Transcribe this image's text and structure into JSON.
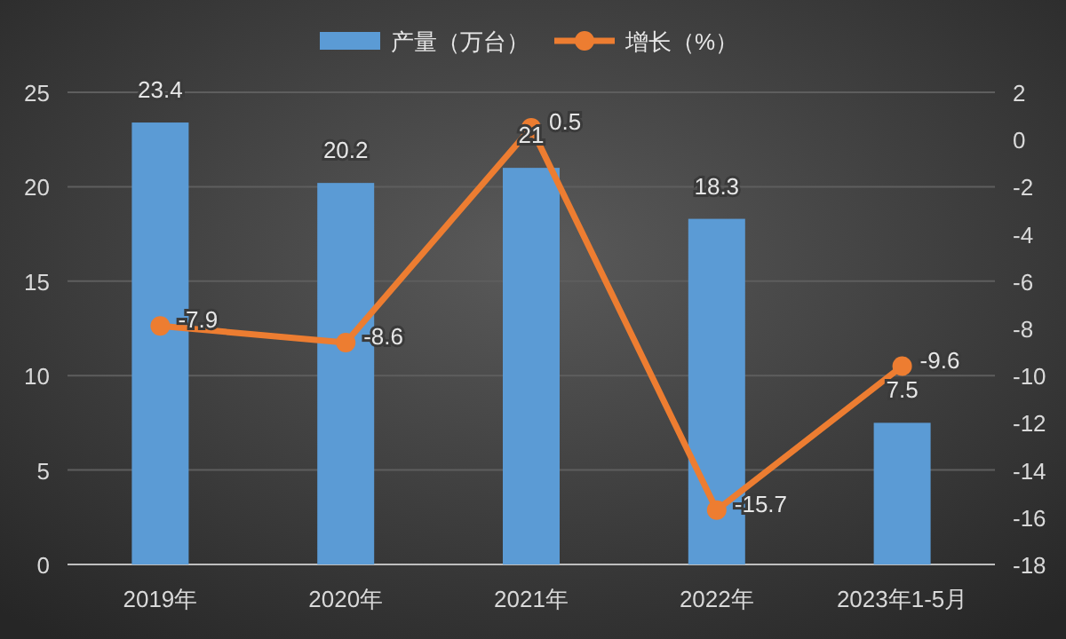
{
  "chart_data": {
    "type": "bar",
    "categories": [
      "2019年",
      "2020年",
      "2021年",
      "2022年",
      "2023年1-5月"
    ],
    "series": [
      {
        "name": "产量（万台）",
        "color": "#5b9bd5",
        "values": [
          23.4,
          20.2,
          21,
          18.3,
          7.5
        ]
      },
      {
        "name": "增长（%）",
        "type": "line",
        "axis": "y2",
        "color": "#ed7d31",
        "marker": "circle",
        "values": [
          -7.9,
          -8.6,
          0.5,
          -15.7,
          -9.6
        ]
      }
    ],
    "ylim": [
      0,
      25
    ],
    "yticks": [
      0,
      5,
      10,
      15,
      20,
      25
    ],
    "y2lim": [
      -18,
      2
    ],
    "y2ticks": [
      -18,
      -16,
      -14,
      -12,
      -10,
      -8,
      -6,
      -4,
      -2,
      0,
      2
    ],
    "grid": "y",
    "legend": "top",
    "data_labels": true
  }
}
